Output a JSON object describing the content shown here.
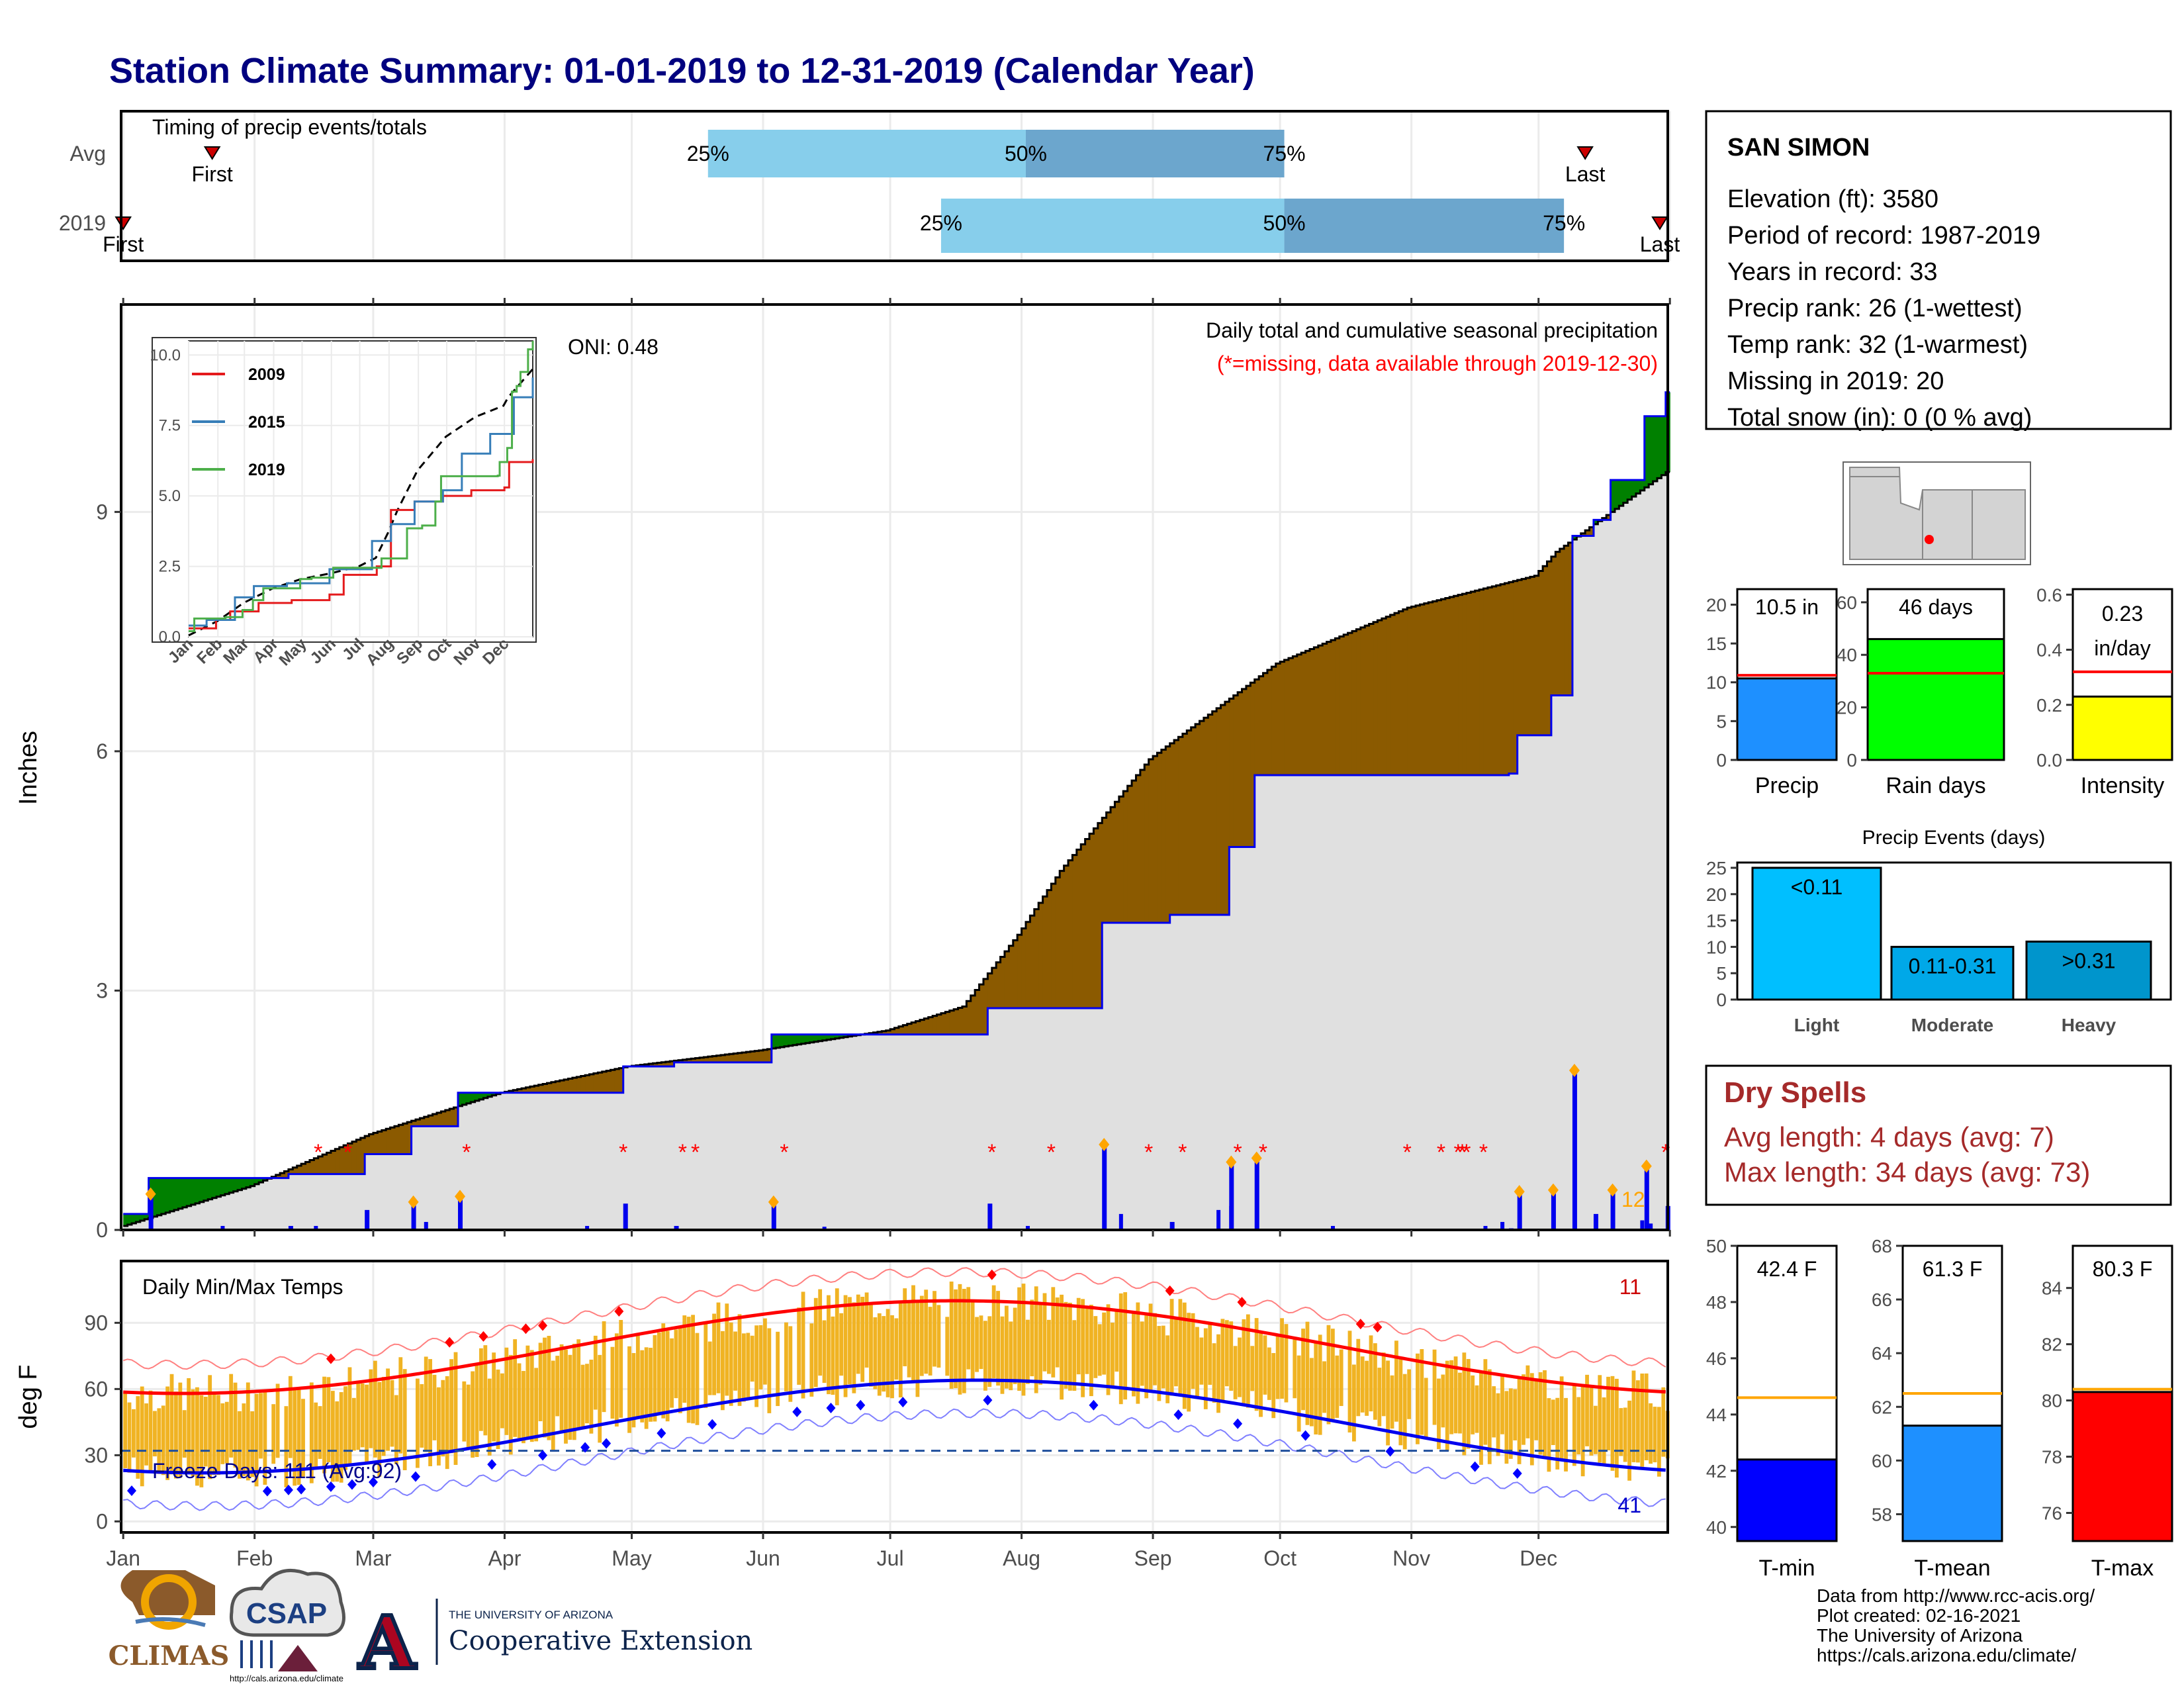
{
  "title": "Station Climate Summary: 01-01-2019 to 12-31-2019 (Calendar Year)",
  "timing": {
    "label": "Timing of precip events/totals",
    "rows": [
      "Avg",
      "2019"
    ],
    "avg": {
      "first_day": 22,
      "last_day": 346,
      "p25_day": 139,
      "p50_day": 214,
      "p75_day": 275
    },
    "y2019": {
      "first_day": 1,
      "last_day": 365,
      "p25_day": 194,
      "p50_day": 275,
      "p75_day": 341
    },
    "first_label": "First",
    "last_label": "Last",
    "p25": "25%",
    "p50": "50%",
    "p75": "75%"
  },
  "station": {
    "name": "SAN SIMON",
    "lines": [
      "Elevation (ft): 3580",
      "Period of record: 1987-2019",
      "Years in record: 33",
      "Precip rank: 26 (1-wettest)",
      "Temp rank: 32 (1-warmest)",
      "Missing in 2019: 20",
      "Total snow (in): 0 (0 % avg)"
    ]
  },
  "main": {
    "title": "Daily total and cumulative seasonal precipitation",
    "subtitle": "(*=missing, data available through 2019-12-30)",
    "oni": "ONI: 0.48",
    "ylabel": "Inches",
    "yticks": [
      0,
      3,
      6,
      9
    ],
    "ylim": [
      0,
      11.6
    ],
    "count_label": "12",
    "colors": {
      "above": "#008000",
      "below": "#8b5a00",
      "base": "#e0e0e0",
      "line": "#0000ee",
      "missing": "#ff0000",
      "extreme": "#ffa500"
    }
  },
  "inset": {
    "yticks": [
      "0.0",
      "2.5",
      "5.0",
      "7.5",
      "10.0"
    ],
    "xticks": [
      "Jan",
      "Feb",
      "Mar",
      "Apr",
      "May",
      "Jun",
      "Jul",
      "Aug",
      "Sep",
      "Oct",
      "Nov",
      "Dec"
    ],
    "legend": [
      {
        "name": "2009",
        "color": "#e41a1c"
      },
      {
        "name": "2015",
        "color": "#377eb8"
      },
      {
        "name": "2019",
        "color": "#4daf4a"
      }
    ]
  },
  "temps": {
    "title": "Daily Min/Max Temps",
    "ylabel": "deg F",
    "yticks": [
      0,
      30,
      60,
      90
    ],
    "ylim": [
      -5,
      118
    ],
    "freeze_label": "Freeze Days: 111 (Avg:92)",
    "hot_count": "11",
    "cold_count": "41",
    "months": [
      "Jan",
      "Feb",
      "Mar",
      "Apr",
      "May",
      "Jun",
      "Jul",
      "Aug",
      "Sep",
      "Oct",
      "Nov",
      "Dec"
    ]
  },
  "chart_data": [
    {
      "type": "area",
      "name": "cumulative-precip",
      "x_unit": "day of year",
      "y_unit": "inches",
      "avg_cumulative": [
        [
          1,
          0.05
        ],
        [
          31,
          0.55
        ],
        [
          59,
          1.2
        ],
        [
          90,
          1.72
        ],
        [
          120,
          2.05
        ],
        [
          151,
          2.25
        ],
        [
          181,
          2.5
        ],
        [
          199,
          2.8
        ],
        [
          212,
          3.7
        ],
        [
          222,
          4.5
        ],
        [
          243,
          5.9
        ],
        [
          273,
          7.1
        ],
        [
          304,
          7.8
        ],
        [
          334,
          8.2
        ],
        [
          339,
          8.5
        ],
        [
          365,
          9.5
        ]
      ],
      "y2019_cumulative": [
        [
          1,
          0.2
        ],
        [
          7,
          0.65
        ],
        [
          40,
          0.7
        ],
        [
          58,
          0.95
        ],
        [
          69,
          1.3
        ],
        [
          80,
          1.72
        ],
        [
          119,
          2.05
        ],
        [
          131,
          2.1
        ],
        [
          154,
          2.45
        ],
        [
          197,
          2.45
        ],
        [
          205,
          2.78
        ],
        [
          232,
          3.85
        ],
        [
          248,
          3.95
        ],
        [
          262,
          4.8
        ],
        [
          268,
          5.7
        ],
        [
          328,
          5.72
        ],
        [
          330,
          6.2
        ],
        [
          338,
          6.7
        ],
        [
          343,
          8.7
        ],
        [
          348,
          8.9
        ],
        [
          352,
          9.4
        ],
        [
          360,
          10.2
        ],
        [
          365,
          10.5
        ]
      ]
    },
    {
      "type": "bar",
      "name": "precip-summary",
      "categories": [
        "Precip",
        "Rain days",
        "Intensity"
      ],
      "values": [
        10.5,
        46,
        0.23
      ],
      "averages": [
        10.9,
        33,
        0.32
      ],
      "labels": [
        "10.5 in",
        "46 days",
        "0.23",
        "in/day"
      ],
      "ylims": [
        [
          0,
          22
        ],
        [
          0,
          65
        ],
        [
          0,
          0.62
        ]
      ],
      "yticks": [
        [
          0,
          5,
          10,
          15,
          20
        ],
        [
          0,
          20,
          40,
          60
        ],
        [
          "0.0",
          "0.2",
          "0.4",
          "0.6"
        ]
      ],
      "colors": [
        "#1e90ff",
        "#00ff00",
        "#ffff00"
      ]
    },
    {
      "type": "bar",
      "name": "precip-events",
      "title": "Precip Events (days)",
      "categories": [
        "Light",
        "Moderate",
        "Heavy"
      ],
      "values": [
        25,
        10,
        11
      ],
      "labels": [
        "<0.11",
        "0.11-0.31",
        ">0.31"
      ],
      "yticks": [
        0,
        5,
        10,
        15,
        20,
        25
      ],
      "colors": [
        "#00bfff",
        "#00a8e8",
        "#0095cc"
      ]
    },
    {
      "type": "bar",
      "name": "temp-summary",
      "categories": [
        "T-min",
        "T-mean",
        "T-max"
      ],
      "values": [
        42.4,
        61.3,
        80.3
      ],
      "averages": [
        44.6,
        62.5,
        80.4
      ],
      "labels": [
        "42.4 F",
        "61.3 F",
        "80.3 F"
      ],
      "ylims": [
        [
          39.5,
          50
        ],
        [
          57,
          68
        ],
        [
          75,
          85.5
        ]
      ],
      "yticks": [
        [
          40,
          42,
          44,
          46,
          48,
          50
        ],
        [
          58,
          60,
          62,
          64,
          66,
          68
        ],
        [
          76,
          78,
          80,
          82,
          84
        ]
      ],
      "colors": [
        "#0000ff",
        "#1e90ff",
        "#ff0000"
      ]
    }
  ],
  "dry_spells": {
    "title": "Dry Spells",
    "avg_line": "Avg length: 4 days (avg: 7)",
    "max_line": "Max length: 34 days (avg: 73)"
  },
  "footer": {
    "lines": [
      "Data from http://www.rcc-acis.org/",
      "Plot created: 02-16-2021",
      "The University of Arizona",
      "https://cals.arizona.edu/climate/"
    ],
    "climas": "CLIMAS",
    "csap": "CSAP",
    "csap_url": "http://cals.arizona.edu/climate",
    "ua_small": "THE UNIVERSITY OF ARIZONA",
    "ua_big": "Cooperative Extension",
    "ua_letter": "A"
  }
}
